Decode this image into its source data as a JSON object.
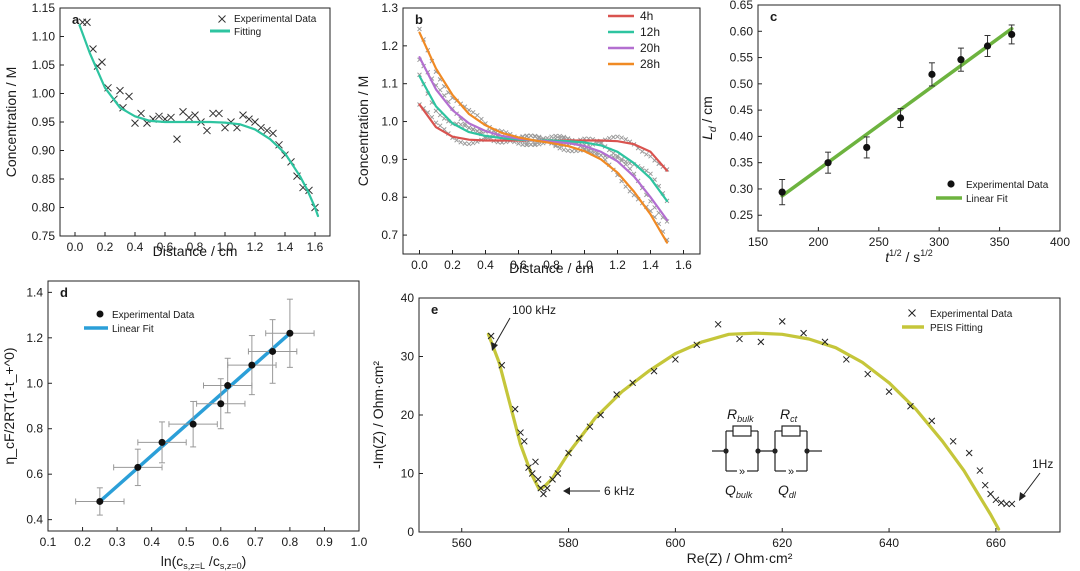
{
  "chart_data": [
    {
      "id": "a",
      "panel_label": "a",
      "type": "scatter",
      "xlabel": "Distance / cm",
      "ylabel": "Concentration / M",
      "xlim": [
        -0.1,
        1.7
      ],
      "ylim": [
        0.75,
        1.15
      ],
      "xticks": [
        "0.0",
        "0.2",
        "0.4",
        "0.6",
        "0.8",
        "1.0",
        "1.2",
        "1.4",
        "1.6"
      ],
      "yticks": [
        "0.75",
        "0.80",
        "0.85",
        "0.90",
        "0.95",
        "1.00",
        "1.05",
        "1.10",
        "1.15"
      ],
      "legend": [
        "Experimental Data",
        "Fitting"
      ],
      "colors": {
        "fit": "#2ec4a0",
        "marker": "#333333"
      },
      "series": [
        {
          "name": "Experimental Data",
          "kind": "x-marker",
          "x": [
            0.05,
            0.08,
            0.12,
            0.15,
            0.18,
            0.22,
            0.26,
            0.3,
            0.32,
            0.36,
            0.4,
            0.44,
            0.48,
            0.52,
            0.56,
            0.6,
            0.64,
            0.68,
            0.72,
            0.76,
            0.8,
            0.84,
            0.88,
            0.92,
            0.96,
            1.0,
            1.04,
            1.08,
            1.12,
            1.16,
            1.2,
            1.24,
            1.28,
            1.32,
            1.36,
            1.4,
            1.44,
            1.48,
            1.52,
            1.56,
            1.6
          ],
          "y": [
            1.125,
            1.125,
            1.078,
            1.048,
            1.055,
            1.01,
            0.99,
            1.005,
            0.975,
            0.995,
            0.948,
            0.965,
            0.948,
            0.955,
            0.96,
            0.955,
            0.958,
            0.92,
            0.968,
            0.958,
            0.962,
            0.95,
            0.935,
            0.965,
            0.965,
            0.94,
            0.95,
            0.94,
            0.962,
            0.955,
            0.95,
            0.94,
            0.935,
            0.93,
            0.91,
            0.892,
            0.88,
            0.855,
            0.835,
            0.83,
            0.8
          ]
        },
        {
          "name": "Fitting",
          "kind": "line",
          "x": [
            0.03,
            0.1,
            0.2,
            0.3,
            0.4,
            0.5,
            0.6,
            0.7,
            0.8,
            0.9,
            1.0,
            1.1,
            1.2,
            1.3,
            1.4,
            1.5,
            1.55,
            1.6,
            1.62
          ],
          "y": [
            1.12,
            1.07,
            1.01,
            0.975,
            0.96,
            0.952,
            0.95,
            0.95,
            0.95,
            0.95,
            0.949,
            0.946,
            0.937,
            0.92,
            0.895,
            0.855,
            0.83,
            0.8,
            0.785
          ]
        }
      ]
    },
    {
      "id": "b",
      "panel_label": "b",
      "type": "line",
      "xlabel": "Distance / cm",
      "ylabel": "Concentration / M",
      "xlim": [
        -0.1,
        1.7
      ],
      "ylim": [
        0.65,
        1.3
      ],
      "xticks": [
        "0.0",
        "0.2",
        "0.4",
        "0.6",
        "0.8",
        "1.0",
        "1.2",
        "1.4",
        "1.6"
      ],
      "yticks": [
        "0.7",
        "0.8",
        "0.9",
        "1.0",
        "1.1",
        "1.2",
        "1.3"
      ],
      "legend": [
        "4h",
        "12h",
        "20h",
        "28h"
      ],
      "series": [
        {
          "name": "4h",
          "color": "#d9534f",
          "x": [
            0.0,
            0.1,
            0.2,
            0.3,
            0.4,
            0.5,
            0.6,
            0.7,
            0.8,
            0.9,
            1.0,
            1.1,
            1.2,
            1.3,
            1.4,
            1.5
          ],
          "y": [
            1.045,
            0.985,
            0.96,
            0.952,
            0.95,
            0.95,
            0.95,
            0.95,
            0.95,
            0.95,
            0.95,
            0.95,
            0.948,
            0.94,
            0.92,
            0.87
          ]
        },
        {
          "name": "12h",
          "color": "#2ec4a0",
          "x": [
            0.0,
            0.1,
            0.2,
            0.3,
            0.4,
            0.5,
            0.6,
            0.7,
            0.8,
            0.9,
            1.0,
            1.1,
            1.2,
            1.3,
            1.4,
            1.5
          ],
          "y": [
            1.12,
            1.04,
            0.995,
            0.972,
            0.962,
            0.956,
            0.952,
            0.95,
            0.95,
            0.948,
            0.945,
            0.937,
            0.92,
            0.89,
            0.85,
            0.79
          ]
        },
        {
          "name": "20h",
          "color": "#b36fd0",
          "x": [
            0.0,
            0.1,
            0.2,
            0.3,
            0.4,
            0.5,
            0.6,
            0.7,
            0.8,
            0.9,
            1.0,
            1.1,
            1.2,
            1.3,
            1.4,
            1.5
          ],
          "y": [
            1.17,
            1.085,
            1.03,
            0.995,
            0.975,
            0.962,
            0.955,
            0.95,
            0.947,
            0.943,
            0.935,
            0.92,
            0.895,
            0.855,
            0.8,
            0.74
          ]
        },
        {
          "name": "28h",
          "color": "#f08a24",
          "x": [
            0.0,
            0.1,
            0.2,
            0.3,
            0.4,
            0.5,
            0.6,
            0.7,
            0.8,
            0.9,
            1.0,
            1.1,
            1.2,
            1.3,
            1.4,
            1.5
          ],
          "y": [
            1.235,
            1.14,
            1.07,
            1.02,
            0.99,
            0.97,
            0.958,
            0.95,
            0.943,
            0.935,
            0.922,
            0.9,
            0.865,
            0.815,
            0.755,
            0.68
          ]
        }
      ],
      "scatter": {
        "name": "Experimental Data (x markers, grey)",
        "color": "#9a9a9a"
      }
    },
    {
      "id": "c",
      "panel_label": "c",
      "type": "scatter",
      "xlabel_main": "t",
      "xlabel_sup": "1/2",
      "xlabel_mid": " / s",
      "xlabel_sup2": "1/2",
      "ylabel_main": "L",
      "ylabel_sub": "d",
      "ylabel_rest": " / cm",
      "xlim": [
        150,
        400
      ],
      "ylim": [
        0.22,
        0.65
      ],
      "xticks": [
        "150",
        "200",
        "250",
        "300",
        "350",
        "400"
      ],
      "yticks": [
        "0.25",
        "0.30",
        "0.35",
        "0.40",
        "0.45",
        "0.50",
        "0.55",
        "0.60",
        "0.65"
      ],
      "legend": [
        "Experimental Data",
        "Linear Fit"
      ],
      "colors": {
        "fit": "#6db33f",
        "marker": "#111111"
      },
      "series": [
        {
          "name": "Experimental Data",
          "x": [
            170,
            208,
            240,
            268,
            294,
            318,
            340,
            360
          ],
          "y": [
            0.294,
            0.35,
            0.379,
            0.435,
            0.518,
            0.546,
            0.572,
            0.594
          ],
          "err": [
            0.024,
            0.02,
            0.02,
            0.018,
            0.022,
            0.022,
            0.02,
            0.018
          ]
        },
        {
          "name": "Linear Fit",
          "x": [
            170,
            360
          ],
          "y": [
            0.287,
            0.605
          ]
        }
      ]
    },
    {
      "id": "d",
      "panel_label": "d",
      "type": "scatter",
      "xlabel": "ln(c",
      "xlabel_sub": "s,z=L",
      "xlabel_mid": " /c",
      "xlabel_sub2": "s,z=0",
      "xlabel_end": ")",
      "ylabel": "η_cF/2RT(1-t_+^0)",
      "xlim": [
        0.1,
        1.0
      ],
      "ylim": [
        0.35,
        1.45
      ],
      "xticks": [
        "0.1",
        "0.2",
        "0.3",
        "0.4",
        "0.5",
        "0.6",
        "0.7",
        "0.8",
        "0.9",
        "1.0"
      ],
      "yticks": [
        "0.4",
        "0.6",
        "0.8",
        "1.0",
        "1.2",
        "1.4"
      ],
      "legend": [
        "Experimental Data",
        "Linear Fit"
      ],
      "colors": {
        "fit": "#2b9fd8",
        "marker": "#111111"
      },
      "series": [
        {
          "name": "Experimental Data",
          "x": [
            0.25,
            0.36,
            0.43,
            0.52,
            0.6,
            0.62,
            0.69,
            0.75,
            0.8
          ],
          "y": [
            0.48,
            0.63,
            0.74,
            0.82,
            0.91,
            0.99,
            1.08,
            1.14,
            1.22
          ],
          "xerr": [
            0.07,
            0.07,
            0.07,
            0.07,
            0.07,
            0.07,
            0.07,
            0.07,
            0.07
          ],
          "yerr": [
            0.06,
            0.08,
            0.09,
            0.1,
            0.11,
            0.12,
            0.13,
            0.14,
            0.15
          ]
        },
        {
          "name": "Linear Fit",
          "x": [
            0.25,
            0.8
          ],
          "y": [
            0.48,
            1.22
          ]
        }
      ]
    },
    {
      "id": "e",
      "panel_label": "e",
      "type": "scatter",
      "xlabel": "Re(Z) / Ohm·cm²",
      "ylabel": "-Im(Z) / Ohm·cm²",
      "xlim": [
        552,
        672
      ],
      "ylim": [
        0,
        40
      ],
      "xticks": [
        "560",
        "580",
        "600",
        "620",
        "640",
        "660"
      ],
      "yticks": [
        "0",
        "10",
        "20",
        "30",
        "40"
      ],
      "legend": [
        "Experimental Data",
        "PEIS Fitting"
      ],
      "colors": {
        "fit": "#c5c63a",
        "marker": "#222222"
      },
      "annotations": [
        "100 kHz",
        "6 kHz",
        "1Hz"
      ],
      "circuit_labels": {
        "r1": "R",
        "r1_sub": "bulk",
        "r2": "R",
        "r2_sub": "ct",
        "q1": "Q",
        "q1_sub": "bulk",
        "q2": "Q",
        "q2_sub": "dl"
      },
      "series": [
        {
          "name": "Experimental Data",
          "x": [
            565.5,
            567.5,
            570,
            571,
            571.7,
            572.5,
            573.2,
            573.8,
            574.3,
            574.8,
            575.3,
            576,
            577,
            578,
            580,
            582,
            584,
            586,
            589,
            592,
            596,
            600,
            604,
            608,
            612,
            616,
            620,
            624,
            628,
            632,
            636,
            640,
            644,
            648,
            652,
            655,
            657,
            658,
            659,
            660,
            661,
            662,
            663
          ],
          "y": [
            33.5,
            28.5,
            21,
            17,
            15.5,
            11,
            10,
            12,
            9,
            7.5,
            6.5,
            7.5,
            9,
            10,
            13.5,
            16,
            18,
            20,
            23.5,
            25.5,
            27.5,
            29.5,
            32,
            35.5,
            33,
            32.5,
            36,
            34,
            32.5,
            29.5,
            27,
            24,
            21.5,
            19,
            15.5,
            13.5,
            10.5,
            8,
            6.5,
            5.5,
            5,
            4.8,
            4.8
          ]
        },
        {
          "name": "PEIS Fitting",
          "x": [
            565,
            567,
            569,
            571,
            573,
            574.5,
            575.5,
            577,
            580,
            585,
            590,
            595,
            600,
            605,
            610,
            615,
            620,
            625,
            630,
            635,
            640,
            645,
            650,
            654,
            657,
            659,
            660.5
          ],
          "y": [
            33.8,
            29,
            22,
            15,
            10,
            7.3,
            7.8,
            9.2,
            13.5,
            19.5,
            24,
            27.5,
            30.5,
            32.5,
            33.8,
            34,
            33.8,
            33,
            31.5,
            29,
            25.5,
            21,
            15.5,
            10.5,
            6,
            3,
            0.5
          ]
        }
      ]
    }
  ]
}
